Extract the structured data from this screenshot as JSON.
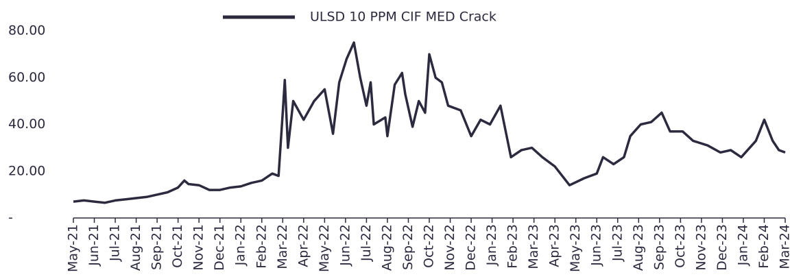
{
  "chart_data": {
    "type": "line",
    "series": [
      {
        "name": "ULSD 10 PPM CIF MED Crack",
        "color": "#2b2a3f",
        "x": [
          0,
          0.5,
          1,
          1.5,
          2,
          2.5,
          3,
          3.5,
          4,
          4.5,
          5,
          5.3,
          5.5,
          6,
          6.5,
          7,
          7.5,
          8,
          8.5,
          9,
          9.5,
          9.8,
          10,
          10.1,
          10.25,
          10.5,
          11,
          11.5,
          12,
          12.4,
          12.7,
          13.05,
          13.4,
          13.7,
          14.0,
          14.2,
          14.35,
          14.9,
          15.0,
          15.35,
          15.7,
          15.85,
          16.2,
          16.5,
          16.8,
          17.0,
          17.3,
          17.6,
          17.9,
          18.5,
          19.0,
          19.45,
          19.9,
          20.4,
          20.9,
          21.4,
          21.9,
          22.4,
          23.0,
          23.7,
          24.4,
          25.0,
          25.3,
          25.8,
          26.3,
          26.6,
          27.1,
          27.6,
          28.1,
          28.5,
          29.1,
          29.6,
          30.3,
          30.9,
          31.4,
          31.9,
          32.6,
          33.0,
          33.4,
          33.7,
          34.0
        ],
        "values": [
          7,
          7.5,
          7,
          6.5,
          7.5,
          8,
          8.5,
          9,
          10,
          11,
          13,
          16,
          14.5,
          14,
          12,
          12,
          13,
          13.5,
          15,
          16,
          19,
          18,
          45,
          59,
          30,
          50,
          42,
          50,
          55,
          36,
          58,
          68,
          75,
          60,
          48,
          58,
          40,
          43,
          35,
          57,
          62,
          53,
          39,
          50,
          45,
          70,
          60,
          58,
          48,
          46,
          35,
          42,
          40,
          48,
          26,
          29,
          30,
          26,
          22,
          14,
          17,
          19,
          26,
          23,
          26,
          35,
          40,
          41,
          45,
          37,
          37,
          33,
          31,
          28,
          29,
          26,
          33,
          42,
          33,
          29,
          28
        ]
      }
    ],
    "xlim": [
      0,
      34
    ],
    "xticks": [
      {
        "value": 0,
        "label": "May-21"
      },
      {
        "value": 1,
        "label": "Jun-21"
      },
      {
        "value": 2,
        "label": "Jul-21"
      },
      {
        "value": 3,
        "label": "Aug-21"
      },
      {
        "value": 4,
        "label": "Sep-21"
      },
      {
        "value": 5,
        "label": "Oct-21"
      },
      {
        "value": 6,
        "label": "Nov-21"
      },
      {
        "value": 7,
        "label": "Dec-21"
      },
      {
        "value": 8,
        "label": "Jan-22"
      },
      {
        "value": 9,
        "label": "Feb-22"
      },
      {
        "value": 10,
        "label": "Mar-22"
      },
      {
        "value": 11,
        "label": "Apr-22"
      },
      {
        "value": 12,
        "label": "May-22"
      },
      {
        "value": 13,
        "label": "Jun-22"
      },
      {
        "value": 14,
        "label": "Jul-22"
      },
      {
        "value": 15,
        "label": "Aug-22"
      },
      {
        "value": 16,
        "label": "Sep-22"
      },
      {
        "value": 17,
        "label": "Oct-22"
      },
      {
        "value": 18,
        "label": "Nov-22"
      },
      {
        "value": 19,
        "label": "Dec-22"
      },
      {
        "value": 20,
        "label": "Jan-23"
      },
      {
        "value": 21,
        "label": "Feb-23"
      },
      {
        "value": 22,
        "label": "Mar-23"
      },
      {
        "value": 23,
        "label": "Apr-23"
      },
      {
        "value": 24,
        "label": "May-23"
      },
      {
        "value": 25,
        "label": "Jun-23"
      },
      {
        "value": 26,
        "label": "Jul-23"
      },
      {
        "value": 27,
        "label": "Aug-23"
      },
      {
        "value": 28,
        "label": "Sep-23"
      },
      {
        "value": 29,
        "label": "Oct-23"
      },
      {
        "value": 30,
        "label": "Nov-23"
      },
      {
        "value": 31,
        "label": "Dec-23"
      },
      {
        "value": 32,
        "label": "Jan-24"
      },
      {
        "value": 33,
        "label": "Feb-24"
      },
      {
        "value": 34,
        "label": "Mar-24"
      }
    ],
    "ylim": [
      0,
      80
    ],
    "yticks": [
      {
        "value": 0,
        "label": "-"
      },
      {
        "value": 20,
        "label": "20.00"
      },
      {
        "value": 40,
        "label": "40.00"
      },
      {
        "value": 60,
        "label": "60.00"
      },
      {
        "value": 80,
        "label": "80.00"
      }
    ],
    "grid": false,
    "legend": "top"
  }
}
